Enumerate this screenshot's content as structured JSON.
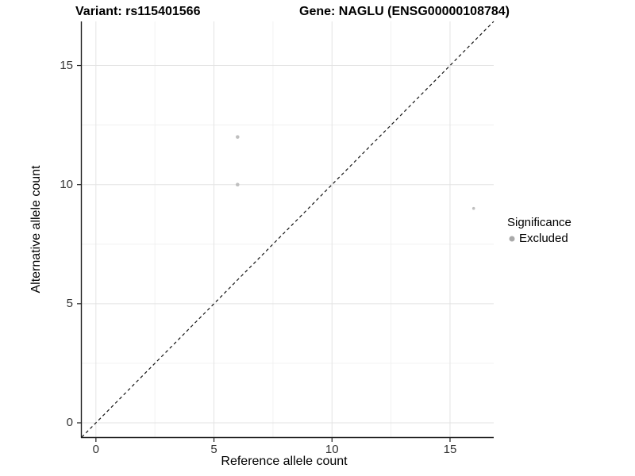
{
  "figure": {
    "title_left": "Variant: rs115401566",
    "title_right": "Gene: NAGLU (ENSG00000108784)"
  },
  "chart_data": {
    "type": "scatter",
    "title_left": "Variant: rs115401566",
    "title_right": "Gene: NAGLU (ENSG00000108784)",
    "xlabel": "Reference allele count",
    "ylabel": "Alternative allele count",
    "xlim": [
      -0.6,
      16.85
    ],
    "ylim": [
      -0.6,
      16.85
    ],
    "xticks": [
      0,
      5,
      10,
      15
    ],
    "yticks": [
      0,
      5,
      10,
      15
    ],
    "minor_gridline_step": 2.5,
    "grid": "major+minor",
    "points": [
      {
        "x": 6,
        "y": 12,
        "r": 2.3,
        "significance": "Excluded"
      },
      {
        "x": 6,
        "y": 10,
        "r": 2.3,
        "significance": "Excluded"
      },
      {
        "x": 16,
        "y": 9,
        "r": 1.8,
        "significance": "Excluded"
      }
    ],
    "identity_line": {
      "slope": 1,
      "intercept": 0,
      "linetype": "dashed",
      "color": "#141414"
    },
    "legend": {
      "title": "Significance",
      "position": "right",
      "items": [
        {
          "label": "Excluded",
          "color": "#a9a9a9"
        }
      ]
    },
    "style": {
      "point_color": "#bfbfbf",
      "major_grid_color": "#e3e3e3",
      "minor_grid_color": "#f0f0f0",
      "axis_line_color": "#1f1f1f",
      "tick_color": "#1f1f1f",
      "background": "#ffffff"
    }
  }
}
